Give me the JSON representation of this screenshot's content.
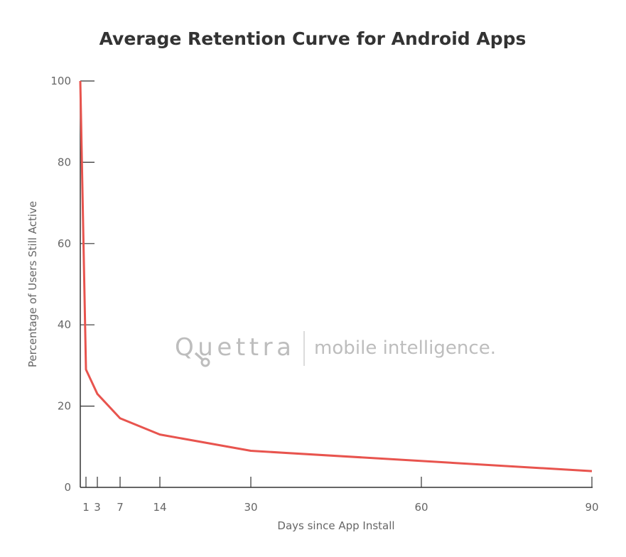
{
  "chart_data": {
    "type": "line",
    "title": "Average Retention Curve for Android Apps",
    "xlabel": "Days since App Install",
    "ylabel": "Percentage of Users Still Active",
    "xlim": [
      0,
      90
    ],
    "ylim": [
      0,
      100
    ],
    "xticks": [
      1,
      3,
      7,
      14,
      30,
      60,
      90
    ],
    "yticks": [
      0,
      20,
      40,
      60,
      80,
      100
    ],
    "grid": false,
    "series": [
      {
        "x": [
          0,
          1,
          3,
          7,
          14,
          30,
          90
        ],
        "y": [
          100,
          29,
          23,
          17,
          13,
          9,
          4
        ],
        "color": "#e8544e"
      }
    ],
    "axis_color": "#333333"
  },
  "watermark": {
    "brand": "Quettra",
    "tagline": "mobile intelligence."
  }
}
